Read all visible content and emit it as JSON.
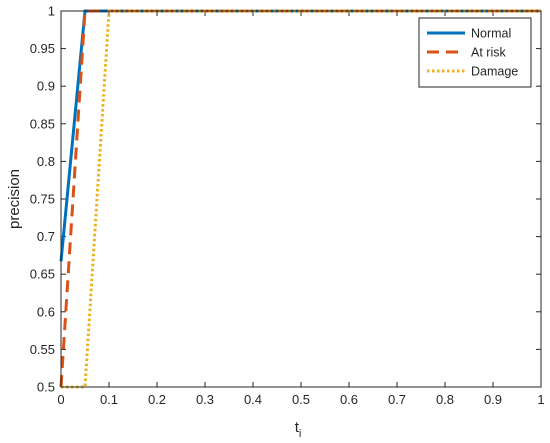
{
  "chart_data": {
    "type": "line",
    "title": "",
    "xlabel": "t",
    "xlabel_subscript": "i",
    "ylabel": "precision",
    "xlim": [
      0,
      1
    ],
    "ylim": [
      0.5,
      1
    ],
    "xticks": [
      0,
      0.1,
      0.2,
      0.3,
      0.4,
      0.5,
      0.6,
      0.7,
      0.8,
      0.9,
      1
    ],
    "xtick_labels": [
      "0",
      "0.1",
      "0.2",
      "0.3",
      "0.4",
      "0.5",
      "0.6",
      "0.7",
      "0.8",
      "0.9",
      "1"
    ],
    "yticks": [
      0.5,
      0.55,
      0.6,
      0.65,
      0.7,
      0.75,
      0.8,
      0.85,
      0.9,
      0.95,
      1
    ],
    "ytick_labels": [
      "0.5",
      "0.55",
      "0.6",
      "0.65",
      "0.7",
      "0.75",
      "0.8",
      "0.85",
      "0.9",
      "0.95",
      "1"
    ],
    "grid": false,
    "legend_position": "top-right",
    "series": [
      {
        "name": "Normal",
        "color": "#0072BD",
        "style": "solid",
        "x": [
          0,
          0.05,
          1
        ],
        "y": [
          0.667,
          1,
          1
        ]
      },
      {
        "name": "At risk",
        "color": "#D95319",
        "style": "dashed",
        "x": [
          0,
          0.05,
          1
        ],
        "y": [
          0.5,
          1,
          1
        ]
      },
      {
        "name": "Damage",
        "color": "#EDB120",
        "style": "dotted",
        "x": [
          0,
          0.05,
          0.1,
          1
        ],
        "y": [
          0.5,
          0.5,
          1,
          1
        ]
      }
    ]
  }
}
